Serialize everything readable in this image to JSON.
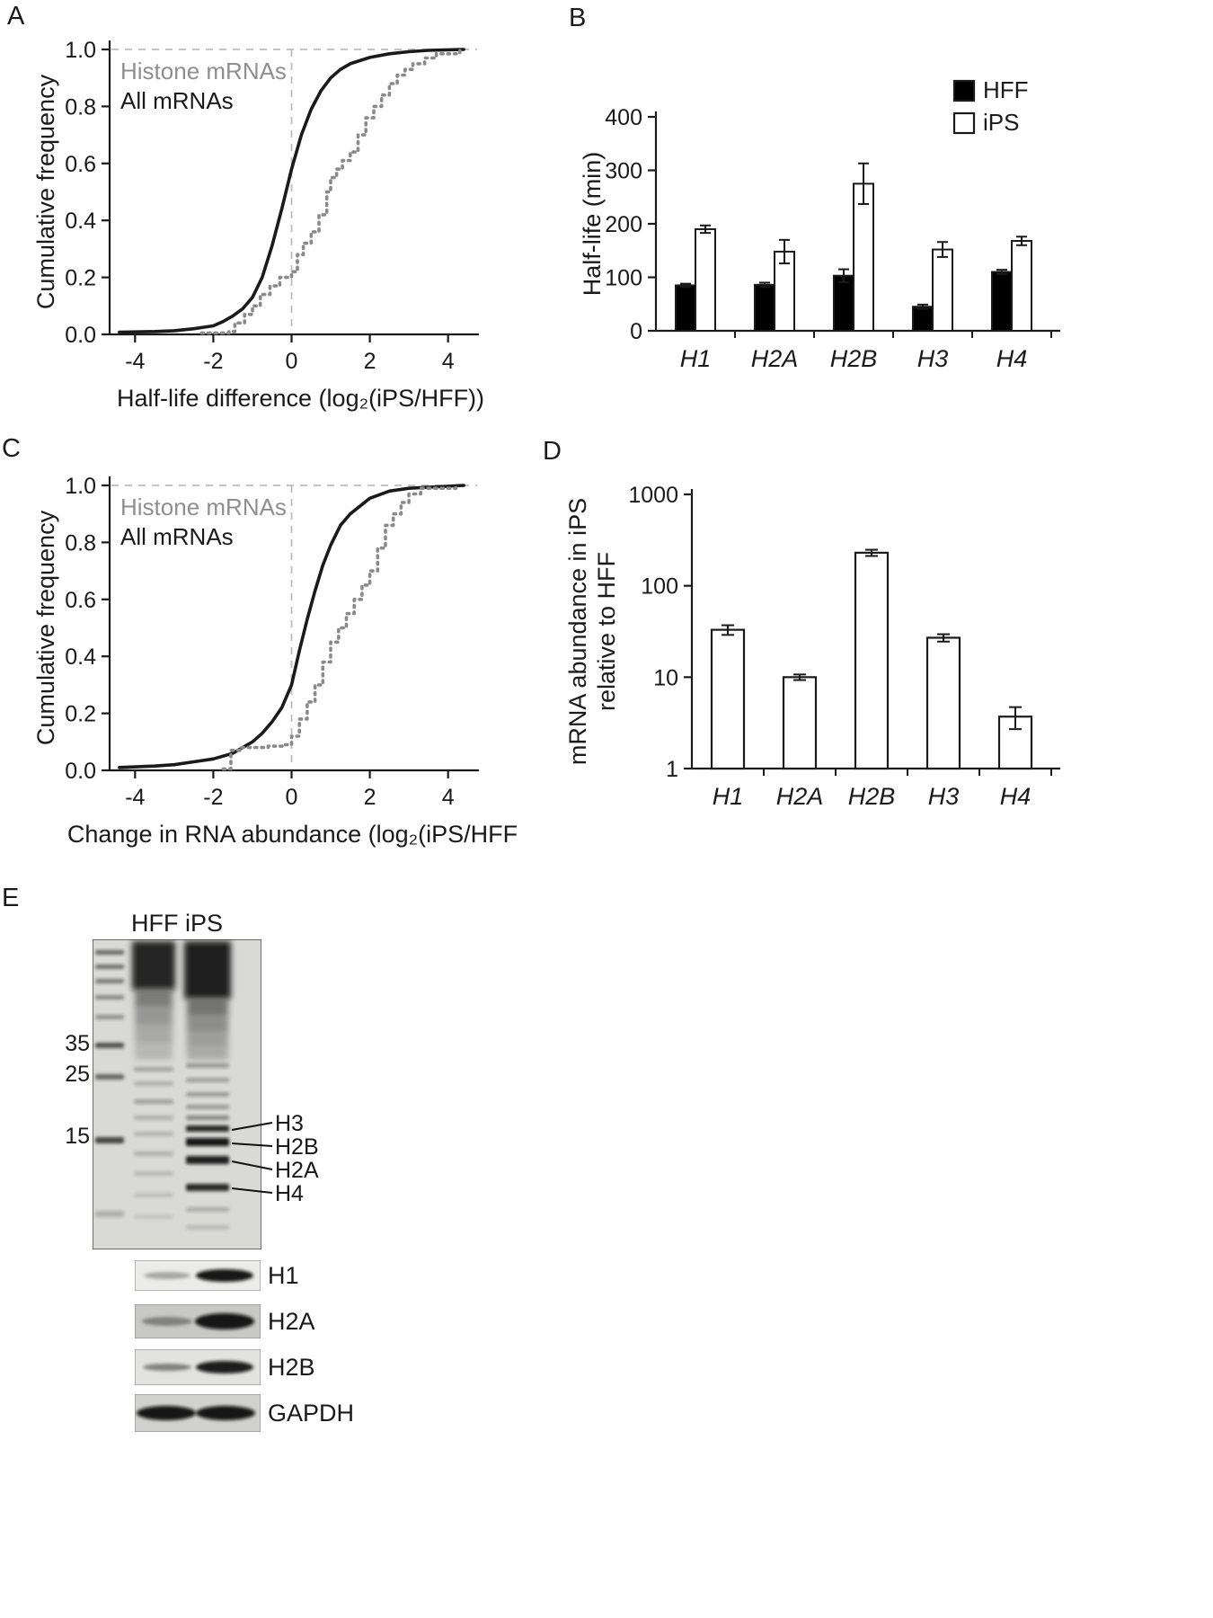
{
  "panels": {
    "A": {
      "label": "A"
    },
    "B": {
      "label": "B"
    },
    "C": {
      "label": "C"
    },
    "D": {
      "label": "D"
    },
    "E": {
      "label": "E",
      "lane_header": "HFF iPS",
      "mw_markers": [
        "35",
        "25",
        "15"
      ],
      "band_labels": [
        "H3",
        "H2B",
        "H2A",
        "H4"
      ],
      "strip_labels": [
        "H1",
        "H2A",
        "H2B",
        "GAPDH"
      ]
    }
  },
  "chart_data": [
    {
      "id": "chartA",
      "panel": "A",
      "type": "line",
      "subtype": "cumulative-distribution",
      "xlabel": "Half-life difference (log₂(iPS/HFF))",
      "ylabel": "Cumulative frequency",
      "xlim": [
        -4.65,
        4.65
      ],
      "ylim": [
        0,
        1
      ],
      "xticks": [
        -4,
        -2,
        0,
        2,
        4
      ],
      "yticks": [
        "0.0",
        "0.2",
        "0.4",
        "0.6",
        "0.8",
        "1.0"
      ],
      "grid": {
        "h_dashed_at": [
          0,
          1
        ],
        "v_dashed_at": [
          0
        ]
      },
      "legend": [
        {
          "label": "Histone mRNAs",
          "color": "#8f8f8f"
        },
        {
          "label": "All mRNAs",
          "color": "#1a1a1a"
        }
      ],
      "series": [
        {
          "name": "All mRNAs",
          "color": "#1a1a1a",
          "dash": "solid",
          "step": false,
          "x": [
            -4.4,
            -3.5,
            -3,
            -2.5,
            -2,
            -1.75,
            -1.5,
            -1.25,
            -1,
            -0.75,
            -0.5,
            -0.25,
            0,
            0.25,
            0.5,
            0.75,
            1,
            1.25,
            1.5,
            2,
            2.5,
            3,
            3.5,
            4.4
          ],
          "y": [
            0.008,
            0.01,
            0.013,
            0.02,
            0.03,
            0.045,
            0.065,
            0.09,
            0.13,
            0.2,
            0.31,
            0.44,
            0.58,
            0.7,
            0.79,
            0.855,
            0.9,
            0.93,
            0.95,
            0.972,
            0.985,
            0.992,
            0.997,
            1.0
          ]
        },
        {
          "name": "Histone mRNAs",
          "color": "#8a8a8a",
          "dash": "dotted",
          "step": true,
          "x": [
            -2.3,
            -1.6,
            -1.45,
            -1.2,
            -1.0,
            -0.8,
            -0.55,
            -0.3,
            0,
            0.15,
            0.3,
            0.5,
            0.7,
            0.9,
            1.0,
            1.15,
            1.3,
            1.5,
            1.7,
            1.9,
            2.1,
            2.3,
            2.5,
            2.7,
            2.9,
            3.1,
            3.4,
            3.7,
            4.3
          ],
          "y": [
            0.005,
            0.01,
            0.04,
            0.07,
            0.1,
            0.14,
            0.17,
            0.2,
            0.22,
            0.28,
            0.32,
            0.36,
            0.42,
            0.5,
            0.55,
            0.58,
            0.61,
            0.64,
            0.7,
            0.76,
            0.8,
            0.84,
            0.88,
            0.91,
            0.93,
            0.95,
            0.97,
            0.985,
            1.0
          ]
        }
      ]
    },
    {
      "id": "chartB",
      "panel": "B",
      "type": "bar",
      "categories": [
        "H1",
        "H2A",
        "H2B",
        "H3",
        "H4"
      ],
      "series": [
        {
          "name": "HFF",
          "fill": "#000000",
          "values": [
            85,
            86,
            103,
            45,
            110
          ],
          "errors": [
            3,
            4,
            12,
            4,
            4
          ]
        },
        {
          "name": "iPS",
          "fill": "#ffffff",
          "values": [
            190,
            148,
            275,
            152,
            168
          ],
          "errors": [
            7,
            22,
            38,
            14,
            8
          ]
        }
      ],
      "ylabel": "Half-life (min)",
      "ylim": [
        0,
        400
      ],
      "yticks": [
        0,
        100,
        200,
        300,
        400
      ],
      "legend_position": "top-right"
    },
    {
      "id": "chartC",
      "panel": "C",
      "type": "line",
      "subtype": "cumulative-distribution",
      "xlabel": "Change in RNA abundance (log₂(iPS/HFF))",
      "ylabel": "Cumulative frequency",
      "xlim": [
        -4.65,
        4.65
      ],
      "ylim": [
        0,
        1
      ],
      "xticks": [
        -4,
        -2,
        0,
        2,
        4
      ],
      "yticks": [
        "0.0",
        "0.2",
        "0.4",
        "0.6",
        "0.8",
        "1.0"
      ],
      "grid": {
        "h_dashed_at": [
          0,
          1
        ],
        "v_dashed_at": [
          0
        ]
      },
      "legend": [
        {
          "label": "Histone mRNAs",
          "color": "#8f8f8f"
        },
        {
          "label": "All mRNAs",
          "color": "#1a1a1a"
        }
      ],
      "series": [
        {
          "name": "All mRNAs",
          "color": "#1a1a1a",
          "dash": "solid",
          "step": false,
          "x": [
            -4.4,
            -3.5,
            -3,
            -2.5,
            -2,
            -1.5,
            -1.25,
            -1,
            -0.75,
            -0.5,
            -0.25,
            0,
            0.2,
            0.4,
            0.6,
            0.8,
            1,
            1.25,
            1.5,
            2,
            2.5,
            3,
            4.4
          ],
          "y": [
            0.01,
            0.015,
            0.02,
            0.03,
            0.04,
            0.06,
            0.08,
            0.1,
            0.13,
            0.17,
            0.22,
            0.3,
            0.42,
            0.53,
            0.63,
            0.72,
            0.79,
            0.86,
            0.9,
            0.955,
            0.98,
            0.99,
            1.0
          ]
        },
        {
          "name": "Histone mRNAs",
          "color": "#8a8a8a",
          "dash": "dotted",
          "step": true,
          "x": [
            -1.75,
            -1.55,
            -1.3,
            -1.0,
            -0.6,
            -0.2,
            0,
            0.2,
            0.4,
            0.6,
            0.8,
            1.0,
            1.2,
            1.4,
            1.6,
            1.8,
            2.0,
            2.2,
            2.4,
            2.6,
            2.8,
            3.0,
            3.3,
            4.2
          ],
          "y": [
            0.005,
            0.07,
            0.08,
            0.08,
            0.085,
            0.09,
            0.12,
            0.18,
            0.24,
            0.3,
            0.38,
            0.45,
            0.5,
            0.55,
            0.6,
            0.65,
            0.7,
            0.78,
            0.86,
            0.9,
            0.94,
            0.97,
            0.99,
            1.0
          ]
        }
      ]
    },
    {
      "id": "chartD",
      "panel": "D",
      "type": "bar",
      "scale": "log",
      "categories": [
        "H1",
        "H2A",
        "H2B",
        "H3",
        "H4"
      ],
      "series": [
        {
          "name": "iPS relative to HFF",
          "fill": "#ffffff",
          "values": [
            33,
            10,
            230,
            27,
            3.7
          ],
          "errors": [
            4,
            0.7,
            18,
            2.5,
            1.0
          ]
        }
      ],
      "ylabel_lines": [
        "mRNA abundance in iPS",
        "relative to HFF"
      ],
      "ylim": [
        1,
        1000
      ],
      "yticks": [
        1,
        10,
        100,
        1000
      ]
    }
  ]
}
